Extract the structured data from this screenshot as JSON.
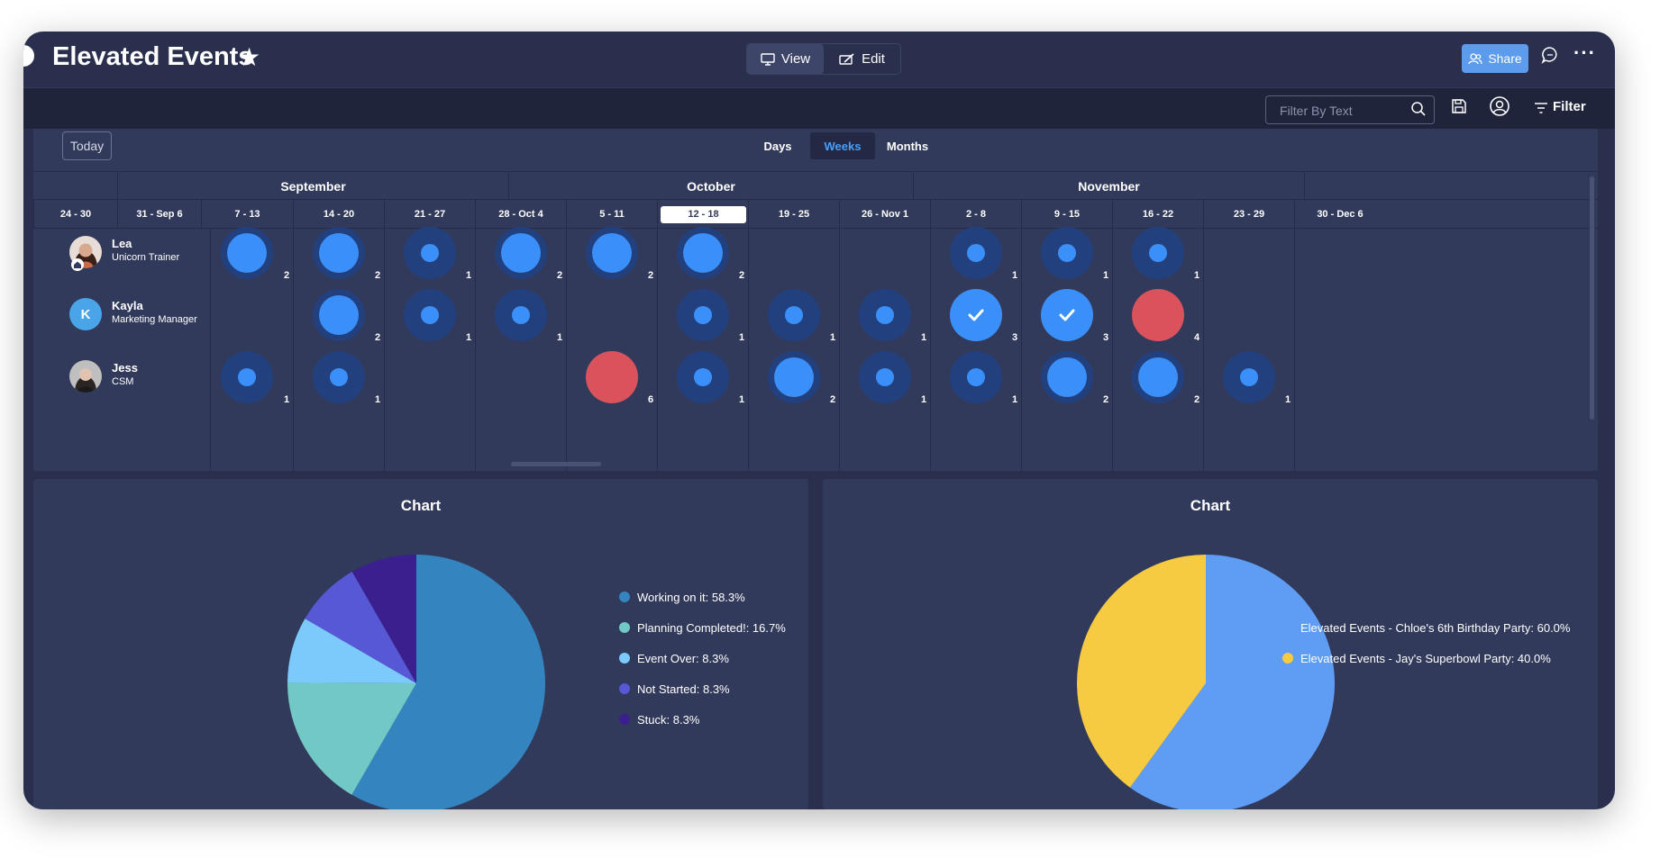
{
  "header": {
    "board_title": "Elevated Events",
    "view_label": "View",
    "edit_label": "Edit",
    "share_label": "Share"
  },
  "toolbar": {
    "filter_placeholder": "Filter By Text",
    "filter_label": "Filter"
  },
  "timeline": {
    "today_label": "Today",
    "scales": [
      "Days",
      "Weeks",
      "Months"
    ],
    "active_scale": "Weeks",
    "months": [
      "September",
      "October",
      "November"
    ],
    "weeks": [
      "24 - 30",
      "31 - Sep 6",
      "7 - 13",
      "14 - 20",
      "21 - 27",
      "28 - Oct 4",
      "5 - 11",
      "12 - 18",
      "19 - 25",
      "26 - Nov 1",
      "2 - 8",
      "9 - 15",
      "16 - 22",
      "23 - 29",
      "30 - Dec 6"
    ],
    "current_week": "12 - 18",
    "people": [
      {
        "name": "Lea",
        "role": "Unicorn Trainer",
        "cells": [
          {
            "week": 2,
            "count": 2,
            "fill": 0.75,
            "status": "working"
          },
          {
            "week": 3,
            "count": 2,
            "fill": 0.75,
            "status": "working"
          },
          {
            "week": 4,
            "count": 1,
            "fill": 0.35,
            "status": "working"
          },
          {
            "week": 5,
            "count": 2,
            "fill": 0.75,
            "status": "working"
          },
          {
            "week": 6,
            "count": 2,
            "fill": 0.75,
            "status": "working"
          },
          {
            "week": 7,
            "count": 2,
            "fill": 0.75,
            "status": "working"
          },
          {
            "week": 10,
            "count": 1,
            "fill": 0.35,
            "status": "working"
          },
          {
            "week": 11,
            "count": 1,
            "fill": 0.35,
            "status": "working"
          },
          {
            "week": 12,
            "count": 1,
            "fill": 0.35,
            "status": "working"
          }
        ]
      },
      {
        "name": "Kayla",
        "role": "Marketing Manager",
        "initial": "K",
        "cells": [
          {
            "week": 3,
            "count": 2,
            "fill": 0.75,
            "status": "working"
          },
          {
            "week": 4,
            "count": 1,
            "fill": 0.35,
            "status": "working"
          },
          {
            "week": 5,
            "count": 1,
            "fill": 0.35,
            "status": "working"
          },
          {
            "week": 7,
            "count": 1,
            "fill": 0.35,
            "status": "working"
          },
          {
            "week": 8,
            "count": 1,
            "fill": 0.35,
            "status": "working"
          },
          {
            "week": 9,
            "count": 1,
            "fill": 0.35,
            "status": "working"
          },
          {
            "week": 10,
            "count": 3,
            "fill": 1,
            "status": "done"
          },
          {
            "week": 11,
            "count": 3,
            "fill": 1,
            "status": "done"
          },
          {
            "week": 12,
            "count": 4,
            "fill": 1,
            "status": "stuck"
          }
        ]
      },
      {
        "name": "Jess",
        "role": "CSM",
        "cells": [
          {
            "week": 2,
            "count": 1,
            "fill": 0.35,
            "status": "working"
          },
          {
            "week": 3,
            "count": 1,
            "fill": 0.35,
            "status": "working"
          },
          {
            "week": 6,
            "count": 6,
            "fill": 1,
            "status": "stuck"
          },
          {
            "week": 7,
            "count": 1,
            "fill": 0.35,
            "status": "working"
          },
          {
            "week": 8,
            "count": 2,
            "fill": 0.75,
            "status": "working"
          },
          {
            "week": 9,
            "count": 1,
            "fill": 0.35,
            "status": "working"
          },
          {
            "week": 10,
            "count": 1,
            "fill": 0.35,
            "status": "working"
          },
          {
            "week": 11,
            "count": 2,
            "fill": 0.75,
            "status": "working"
          },
          {
            "week": 12,
            "count": 2,
            "fill": 0.75,
            "status": "working"
          },
          {
            "week": 13,
            "count": 1,
            "fill": 0.35,
            "status": "working"
          }
        ]
      }
    ]
  },
  "chart_data": [
    {
      "type": "pie",
      "title": "Chart",
      "categories": [
        "Working on it",
        "Planning Completed!",
        "Event Over",
        "Not Started",
        "Stuck"
      ],
      "values": [
        58.3,
        16.7,
        8.3,
        8.3,
        8.3
      ],
      "legend_labels": [
        "Working on it: 58.3%",
        "Planning Completed!: 16.7%",
        "Event Over: 8.3%",
        "Not Started: 8.3%",
        "Stuck: 8.3%"
      ],
      "colors": [
        "#3484c0",
        "#72c8c4",
        "#7cc9fb",
        "#5758d6",
        "#3b1f8f"
      ],
      "legend_position": "right"
    },
    {
      "type": "pie",
      "title": "Chart",
      "categories": [
        "Elevated Events - Chloe's 6th Birthday Party",
        "Elevated Events - Jay's Superbowl Party"
      ],
      "values": [
        60.0,
        40.0
      ],
      "legend_labels": [
        "Elevated Events - Chloe's 6th Birthday Party: 60.0%",
        "Elevated Events - Jay's Superbowl Party: 40.0%"
      ],
      "colors": [
        "#5f9cf3",
        "#f6cb42"
      ],
      "legend_position": "right"
    }
  ]
}
